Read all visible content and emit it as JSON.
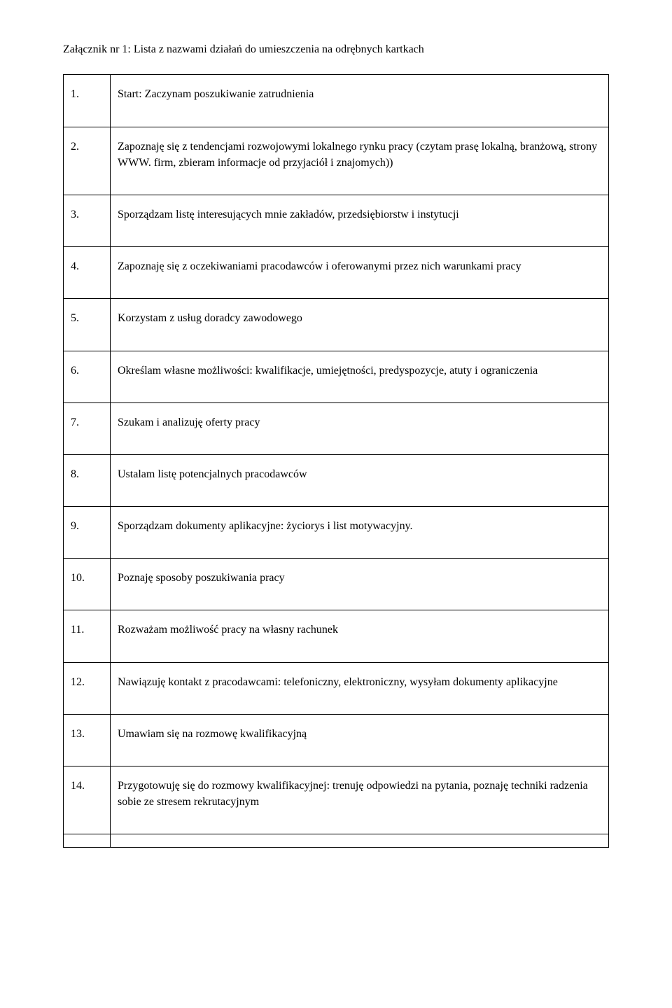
{
  "title": "Załącznik nr 1: Lista z nazwami działań do umieszczenia na odrębnych kartkach",
  "rows": [
    {
      "num": "1.",
      "text": "Start: Zaczynam poszukiwanie zatrudnienia"
    },
    {
      "num": "2.",
      "text": "Zapoznaję się z tendencjami rozwojowymi lokalnego rynku pracy (czytam prasę lokalną, branżową, strony WWW. firm, zbieram informacje od przyjaciół i znajomych))"
    },
    {
      "num": "3.",
      "text": "Sporządzam listę interesujących mnie zakładów, przedsiębiorstw i instytucji"
    },
    {
      "num": "4.",
      "text": "Zapoznaję się z oczekiwaniami pracodawców i oferowanymi przez nich warunkami pracy"
    },
    {
      "num": "5.",
      "text": "Korzystam z usług doradcy zawodowego"
    },
    {
      "num": "6.",
      "text": "Określam własne możliwości: kwalifikacje, umiejętności, predyspozycje, atuty i ograniczenia"
    },
    {
      "num": "7.",
      "text": "Szukam i analizuję oferty pracy"
    },
    {
      "num": "8.",
      "text": "Ustalam listę potencjalnych pracodawców"
    },
    {
      "num": "9.",
      "text": "Sporządzam dokumenty aplikacyjne: życiorys i list motywacyjny."
    },
    {
      "num": "10.",
      "text": "Poznaję sposoby poszukiwania pracy"
    },
    {
      "num": "11.",
      "text": "Rozważam możliwość pracy na własny rachunek"
    },
    {
      "num": "12.",
      "text": "Nawiązuję kontakt z pracodawcami: telefoniczny, elektroniczny, wysyłam dokumenty aplikacyjne"
    },
    {
      "num": "13.",
      "text": "Umawiam się na rozmowę kwalifikacyjną"
    },
    {
      "num": "14.",
      "text": "Przygotowuję się do rozmowy kwalifikacyjnej: trenuję odpowiedzi na pytania, poznaję techniki radzenia sobie ze stresem rekrutacyjnym"
    }
  ]
}
